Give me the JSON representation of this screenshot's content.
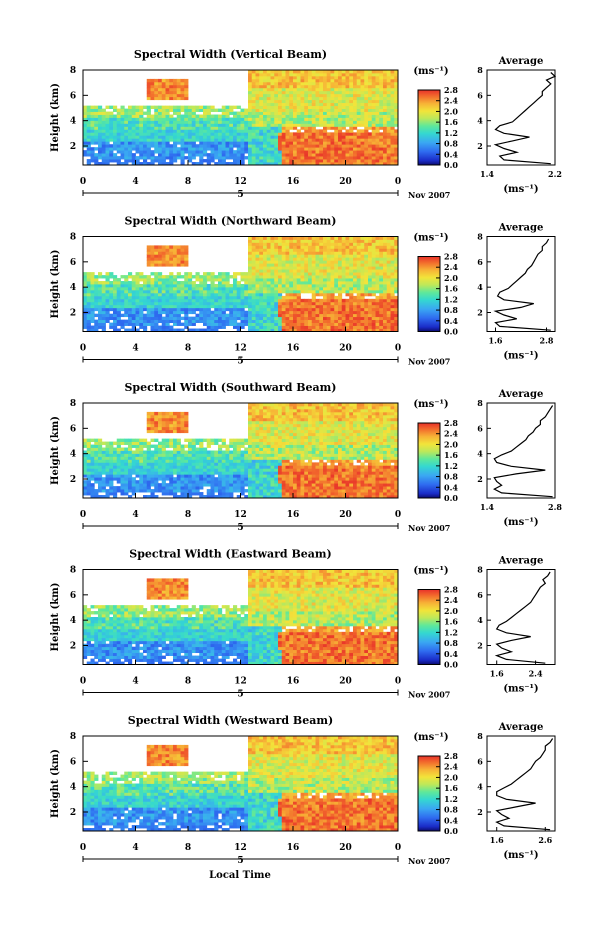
{
  "figure": {
    "xlabel": "Local Time",
    "date_label": "Nov 2007",
    "colorbar_unit": "(ms⁻¹)",
    "profile_title": "Average",
    "profile_unit": "(ms⁻¹)",
    "ylabel": "Height (km)"
  },
  "chart_data": [
    {
      "type": "heatmap",
      "title": "Spectral Width (Vertical Beam)",
      "xlabel": "",
      "ylabel": "Height (km)",
      "x_ticks": [
        "0",
        "4",
        "8",
        "12",
        "16",
        "20",
        "0"
      ],
      "x_day_marker": "5",
      "y_ticks": [
        "2",
        "4",
        "6",
        "8"
      ],
      "xlim": [
        0,
        24
      ],
      "ylim": [
        0.5,
        8
      ],
      "colorbar": {
        "unit": "(ms⁻¹)",
        "ticks": [
          "0.0",
          "0.4",
          "0.8",
          "1.2",
          "1.6",
          "2.0",
          "2.4",
          "2.8"
        ],
        "range": [
          0,
          2.8
        ]
      },
      "profile": {
        "title": "Average",
        "xlabel": "(ms⁻¹)",
        "x_ticks": [
          "1.4",
          "2.2"
        ],
        "xlim": [
          1.4,
          2.2
        ],
        "y_ticks": [
          "2",
          "4",
          "6",
          "8"
        ],
        "height": [
          0.6,
          0.9,
          1.2,
          1.5,
          1.8,
          2.1,
          2.4,
          2.7,
          3.0,
          3.3,
          3.6,
          3.9,
          4.2,
          4.5,
          4.8,
          5.1,
          5.4,
          5.7,
          6.0,
          6.3,
          6.6,
          6.9,
          7.2,
          7.5,
          7.8
        ],
        "width": [
          2.15,
          1.6,
          1.55,
          1.75,
          1.6,
          1.5,
          1.7,
          1.9,
          1.6,
          1.5,
          1.55,
          1.7,
          1.75,
          1.8,
          1.85,
          1.9,
          1.95,
          2.0,
          2.05,
          2.05,
          2.1,
          2.15,
          2.1,
          2.2,
          2.15
        ]
      }
    },
    {
      "type": "heatmap",
      "title": "Spectral Width (Northward Beam)",
      "xlabel": "",
      "ylabel": "Height (km)",
      "x_ticks": [
        "0",
        "4",
        "8",
        "12",
        "16",
        "20",
        "0"
      ],
      "x_day_marker": "5",
      "y_ticks": [
        "2",
        "4",
        "6",
        "8"
      ],
      "xlim": [
        0,
        24
      ],
      "ylim": [
        0.5,
        8
      ],
      "colorbar": {
        "unit": "(ms⁻¹)",
        "ticks": [
          "0.0",
          "0.4",
          "0.8",
          "1.2",
          "1.6",
          "2.0",
          "2.4",
          "2.8"
        ],
        "range": [
          0,
          2.8
        ]
      },
      "profile": {
        "title": "Average",
        "xlabel": "(ms⁻¹)",
        "x_ticks": [
          "1.6",
          "2.8"
        ],
        "xlim": [
          1.4,
          3.0
        ],
        "y_ticks": [
          "2",
          "4",
          "6",
          "8"
        ],
        "height": [
          0.6,
          0.9,
          1.2,
          1.5,
          1.8,
          2.1,
          2.4,
          2.7,
          3.0,
          3.3,
          3.6,
          3.9,
          4.2,
          4.5,
          4.8,
          5.1,
          5.4,
          5.7,
          6.0,
          6.3,
          6.6,
          6.9,
          7.2,
          7.5,
          7.8
        ],
        "width": [
          2.9,
          1.7,
          1.6,
          2.1,
          1.8,
          1.6,
          2.2,
          2.5,
          1.8,
          1.65,
          1.7,
          1.9,
          2.0,
          2.1,
          2.2,
          2.3,
          2.35,
          2.45,
          2.5,
          2.55,
          2.6,
          2.7,
          2.7,
          2.8,
          2.85
        ]
      }
    },
    {
      "type": "heatmap",
      "title": "Spectral Width (Southward Beam)",
      "xlabel": "",
      "ylabel": "Height (km)",
      "x_ticks": [
        "0",
        "4",
        "8",
        "12",
        "16",
        "20",
        "0"
      ],
      "x_day_marker": "5",
      "y_ticks": [
        "2",
        "4",
        "6",
        "8"
      ],
      "xlim": [
        0,
        24
      ],
      "ylim": [
        0.5,
        8
      ],
      "colorbar": {
        "unit": "(ms⁻¹)",
        "ticks": [
          "0.0",
          "0.4",
          "0.8",
          "1.2",
          "1.6",
          "2.0",
          "2.4",
          "2.8"
        ],
        "range": [
          0,
          2.8
        ]
      },
      "profile": {
        "title": "Average",
        "xlabel": "(ms⁻¹)",
        "x_ticks": [
          "1.4",
          "2.8"
        ],
        "xlim": [
          1.4,
          2.8
        ],
        "y_ticks": [
          "2",
          "4",
          "6",
          "8"
        ],
        "height": [
          0.6,
          0.9,
          1.2,
          1.5,
          1.8,
          2.1,
          2.4,
          2.7,
          3.0,
          3.3,
          3.6,
          3.9,
          4.2,
          4.5,
          4.8,
          5.1,
          5.4,
          5.7,
          6.0,
          6.3,
          6.6,
          6.9,
          7.2,
          7.5,
          7.8
        ],
        "width": [
          2.75,
          1.7,
          1.55,
          1.7,
          1.6,
          1.55,
          2.0,
          2.6,
          1.9,
          1.6,
          1.55,
          1.7,
          1.9,
          2.0,
          2.1,
          2.2,
          2.25,
          2.35,
          2.4,
          2.5,
          2.5,
          2.6,
          2.65,
          2.7,
          2.75
        ]
      }
    },
    {
      "type": "heatmap",
      "title": "Spectral Width (Eastward Beam)",
      "xlabel": "",
      "ylabel": "Height (km)",
      "x_ticks": [
        "0",
        "4",
        "8",
        "12",
        "16",
        "20",
        "0"
      ],
      "x_day_marker": "5",
      "y_ticks": [
        "2",
        "4",
        "6",
        "8"
      ],
      "xlim": [
        0,
        24
      ],
      "ylim": [
        0.5,
        8
      ],
      "colorbar": {
        "unit": "(ms⁻¹)",
        "ticks": [
          "0.0",
          "0.4",
          "0.8",
          "1.2",
          "1.6",
          "2.0",
          "2.4",
          "2.8"
        ],
        "range": [
          0,
          2.8
        ]
      },
      "profile": {
        "title": "Average",
        "xlabel": "(ms⁻¹)",
        "x_ticks": [
          "1.6",
          "2.4"
        ],
        "xlim": [
          1.4,
          2.8
        ],
        "y_ticks": [
          "2",
          "4",
          "6",
          "8"
        ],
        "height": [
          0.6,
          0.9,
          1.2,
          1.5,
          1.8,
          2.1,
          2.4,
          2.7,
          3.0,
          3.3,
          3.6,
          3.9,
          4.2,
          4.5,
          4.8,
          5.1,
          5.4,
          5.7,
          6.0,
          6.3,
          6.6,
          6.9,
          7.2,
          7.5,
          7.8
        ],
        "width": [
          2.6,
          1.8,
          1.6,
          1.9,
          1.7,
          1.6,
          1.9,
          2.3,
          1.8,
          1.6,
          1.65,
          1.8,
          1.9,
          2.0,
          2.1,
          2.2,
          2.3,
          2.35,
          2.4,
          2.45,
          2.5,
          2.6,
          2.55,
          2.65,
          2.7
        ]
      }
    },
    {
      "type": "heatmap",
      "title": "Spectral Width (Westward Beam)",
      "xlabel": "Local Time",
      "ylabel": "Height (km)",
      "x_ticks": [
        "0",
        "4",
        "8",
        "12",
        "16",
        "20",
        "0"
      ],
      "x_day_marker": "5",
      "y_ticks": [
        "2",
        "4",
        "6",
        "8"
      ],
      "xlim": [
        0,
        24
      ],
      "ylim": [
        0.5,
        8
      ],
      "colorbar": {
        "unit": "(ms⁻¹)",
        "ticks": [
          "0.0",
          "0.4",
          "0.8",
          "1.2",
          "1.6",
          "2.0",
          "2.4",
          "2.8"
        ],
        "range": [
          0,
          2.8
        ]
      },
      "profile": {
        "title": "Average",
        "xlabel": "(ms⁻¹)",
        "x_ticks": [
          "1.6",
          "2.6"
        ],
        "xlim": [
          1.4,
          2.8
        ],
        "y_ticks": [
          "2",
          "4",
          "6",
          "8"
        ],
        "height": [
          0.6,
          0.9,
          1.2,
          1.5,
          1.8,
          2.1,
          2.4,
          2.7,
          3.0,
          3.3,
          3.6,
          3.9,
          4.2,
          4.5,
          4.8,
          5.1,
          5.4,
          5.7,
          6.0,
          6.3,
          6.6,
          6.9,
          7.2,
          7.5,
          7.8
        ],
        "width": [
          2.7,
          1.75,
          1.6,
          1.85,
          1.7,
          1.6,
          2.0,
          2.4,
          1.8,
          1.6,
          1.6,
          1.75,
          1.9,
          2.0,
          2.1,
          2.2,
          2.3,
          2.35,
          2.4,
          2.5,
          2.55,
          2.6,
          2.6,
          2.7,
          2.75
        ]
      }
    }
  ]
}
